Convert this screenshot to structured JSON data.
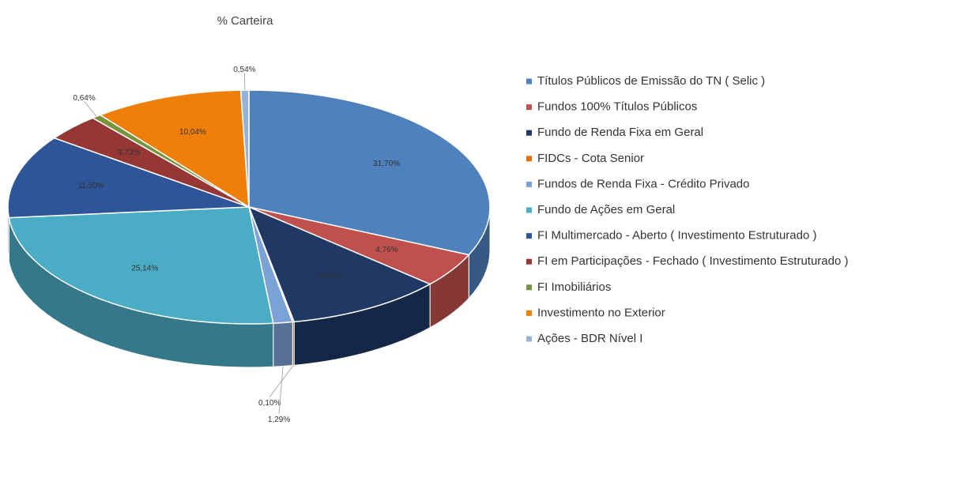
{
  "chart_data": {
    "type": "pie",
    "title": "% Carteira",
    "categories": [
      "Títulos Públicos de Emissão do TN ( Selic )",
      "Fundos  100% Títulos Públicos",
      "Fundo de Renda Fixa em Geral",
      "FIDCs - Cota Senior",
      "Fundos de Renda Fixa - Crédito Privado",
      "Fundo de Ações em Geral",
      "FI Multimercado - Aberto ( Investimento Estruturado )",
      "FI em Participações - Fechado ( Investimento Estruturado )",
      "FI Imobiliários",
      "Investimento no Exterior",
      "Ações - BDR Nível I"
    ],
    "values": [
      31.7,
      4.76,
      10.52,
      0.1,
      1.29,
      25.14,
      11.5,
      3.73,
      0.64,
      10.04,
      0.54
    ],
    "value_labels": [
      "31,70%",
      "4,76%",
      "10,52%",
      "0,10%",
      "1,29%",
      "25,14%",
      "11,50%",
      "3,73%",
      "0,64%",
      "10,04%",
      "0,54%"
    ],
    "colors": [
      "#4f81bd",
      "#c0504d",
      "#1f3864",
      "#e46c0a",
      "#7ba2d6",
      "#4bacc6",
      "#2e5597",
      "#953735",
      "#77933c",
      "#f07f09",
      "#95b3d7"
    ],
    "legend": "right"
  }
}
